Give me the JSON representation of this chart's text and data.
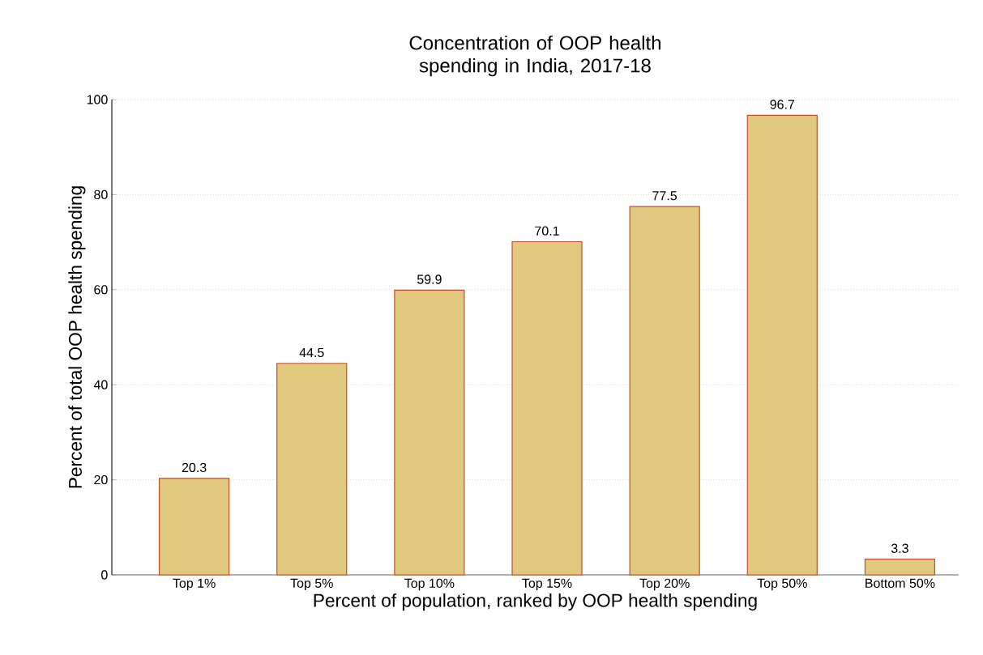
{
  "chart_data": {
    "type": "bar",
    "title": "Concentration of OOP health spending in India, 2017-18",
    "xlabel": "Percent of population, ranked by OOP health spending",
    "ylabel": "Percent of total OOP health spending",
    "categories": [
      "Top 1%",
      "Top 5%",
      "Top 10%",
      "Top 15%",
      "Top 20%",
      "Top 50%",
      "Bottom 50%"
    ],
    "values": [
      20.3,
      44.5,
      59.9,
      70.1,
      77.5,
      96.7,
      3.3
    ],
    "color": "#e0c97e",
    "ylim": [
      0,
      100
    ],
    "yticks": [
      0,
      20,
      40,
      60,
      80,
      100
    ],
    "grid": "y",
    "data_labels": true
  }
}
